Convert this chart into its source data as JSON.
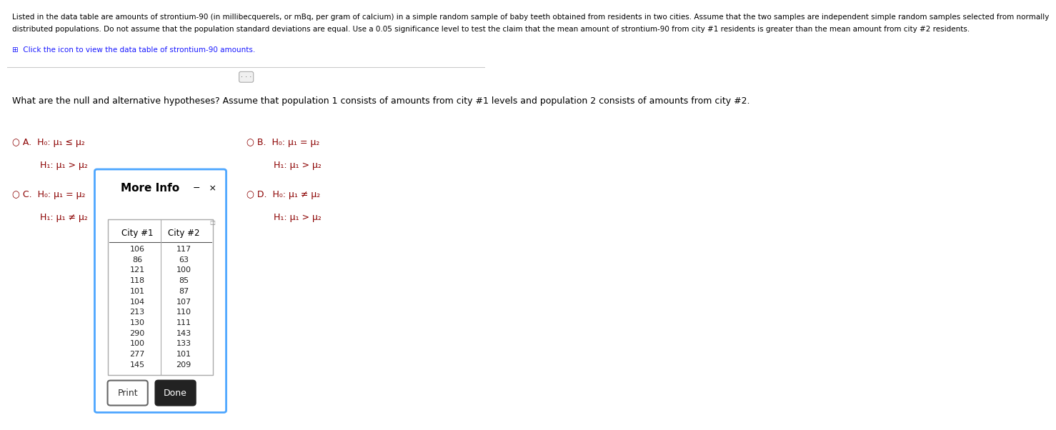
{
  "header_line1": "Listed in the data table are amounts of strontium-90 (in millibecquerels, or mBq, per gram of calcium) in a simple random sample of baby teeth obtained from residents in two cities. Assume that the two samples are independent simple random samples selected from normally",
  "header_line2": "distributed populations. Do not assume that the population standard deviations are equal. Use a 0.05 significance level to test the claim that the mean amount of strontium-90 from city #1 residents is greater than the mean amount from city #2 residents.",
  "click_text": "Click the icon to view the data table of strontium-90 amounts.",
  "question_text": "What are the null and alternative hypotheses? Assume that population 1 consists of amounts from city #1 levels and population 2 consists of amounts from city #2.",
  "city1_data": [
    106,
    86,
    121,
    118,
    101,
    104,
    213,
    130,
    290,
    100,
    277,
    145
  ],
  "city2_data": [
    117,
    63,
    100,
    85,
    87,
    107,
    110,
    111,
    143,
    133,
    101,
    209
  ],
  "option_A_h0": "H₀: μ₁ ≤ μ₂",
  "option_A_h1": "H₁: μ₁ > μ₂",
  "option_B_h0": "H₀: μ₁ = μ₂",
  "option_B_h1": "H₁: μ₁ > μ₂",
  "option_C_h0": "H₀: μ₁ = μ₂",
  "option_C_h1": "H₁: μ₁ ≠ μ₂",
  "option_D_h0": "H₀: μ₁ ≠ μ₂",
  "option_D_h1": "H₁: μ₁ > μ₂",
  "bg_color": "#ffffff",
  "text_color": "#000000",
  "option_color": "#8B0000",
  "header_fontsize": 7.5,
  "body_fontsize": 9,
  "dialog_bg": "#ffffff",
  "dialog_border": "#4da6ff",
  "table_header_color": "#000000",
  "divider_color": "#cccccc",
  "click_color": "#1a1aff"
}
